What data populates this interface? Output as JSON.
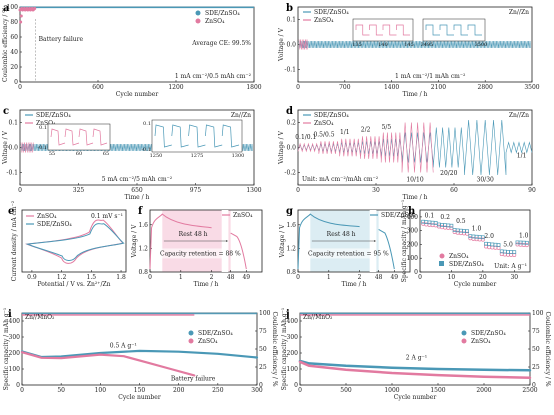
{
  "colors": {
    "sde": "#4a98b6",
    "zn": "#e27aa0",
    "zn_light": "#f3c4d6",
    "sde_light": "#c7e3ec",
    "rest_pink": "#f9dbe6",
    "rest_blue": "#dcedf3"
  },
  "watermark": "",
  "chart_data": [
    {
      "panel": "a",
      "type": "scatter",
      "xlabel": "Cycle number",
      "ylabel": "Coulombic efficiency / %",
      "xlim": [
        0,
        1800
      ],
      "ylim": [
        0,
        100
      ],
      "xticks": [
        0,
        600,
        1200,
        1800
      ],
      "yticks": [
        0,
        20,
        40,
        60,
        80,
        100
      ],
      "series": [
        {
          "name": "SDE/ZnSO₄",
          "color": "sde",
          "x": [
            0,
            1800
          ],
          "y": [
            99.5,
            99.5
          ]
        },
        {
          "name": "ZnSO₄",
          "color": "zn",
          "x": [
            0,
            120
          ],
          "y": [
            97,
            99
          ]
        }
      ],
      "annotations": [
        "Battery failure",
        "Average CE: 99.5%",
        "1 mA cm⁻²/0.5 mAh cm⁻²"
      ],
      "failure_x": 120
    },
    {
      "panel": "b",
      "type": "line",
      "xlabel": "Time / h",
      "ylabel": "Voltage / V",
      "xlim": [
        0,
        3500
      ],
      "ylim": [
        -0.15,
        0.15
      ],
      "xticks": [
        0,
        700,
        1400,
        2100,
        2800,
        3500
      ],
      "yticks": [
        -0.1,
        0.0,
        0.1
      ],
      "series": [
        {
          "name": "SDE/ZnSO₄",
          "color": "sde"
        },
        {
          "name": "ZnSO₄",
          "color": "zn"
        }
      ],
      "zn_end_x": 150,
      "inset1_ticks": [
        135,
        140,
        145
      ],
      "inset2_ticks": [
        3495,
        3500
      ],
      "annotations": [
        "Zn//Zn",
        "1 mA cm⁻²/1 mAh cm⁻²"
      ]
    },
    {
      "panel": "c",
      "type": "line",
      "xlabel": "Time / h",
      "ylabel": "Voltage / V",
      "xlim": [
        0,
        1300
      ],
      "ylim": [
        -0.15,
        0.15
      ],
      "xticks": [
        0,
        325,
        650,
        975,
        1300
      ],
      "yticks": [
        -0.1,
        0.0,
        0.1
      ],
      "series": [
        {
          "name": "SDE/ZnSO₄",
          "color": "sde"
        },
        {
          "name": "ZnSO₄",
          "color": "zn"
        }
      ],
      "zn_end_x": 80,
      "inset1_ticks": [
        55,
        60,
        65
      ],
      "inset1_y": [
        0.1,
        -0.1
      ],
      "inset2_ticks": [
        1250,
        1275,
        1300
      ],
      "inset2_y": [
        0.1,
        -0.1
      ],
      "annotations": [
        "Zn//Zn",
        "5 mA cm⁻²/5 mAh cm⁻²"
      ]
    },
    {
      "panel": "d",
      "type": "line",
      "xlabel": "Time / h",
      "ylabel": "Voltage / V",
      "xlim": [
        0,
        90
      ],
      "ylim": [
        -0.3,
        0.3
      ],
      "xticks": [
        0,
        30,
        60,
        90
      ],
      "yticks": [
        -0.2,
        0.0,
        0.2
      ],
      "series": [
        {
          "name": "SDE/ZnSO₄",
          "color": "sde"
        },
        {
          "name": "ZnSO₄",
          "color": "zn"
        }
      ],
      "rate_labels": [
        "0.1/0.1",
        "0.5/0.5",
        "1/1",
        "2/2",
        "5/5",
        "10/10",
        "20/20",
        "30/30",
        "1/1"
      ],
      "annotations": [
        "Zn//Zn",
        "Unit: mA cm⁻²/mAh cm⁻²"
      ]
    },
    {
      "panel": "e",
      "type": "line",
      "xlabel": "Potential / V vs. Zn²⁺/Zn",
      "ylabel": "Current density / mA cm⁻²",
      "xlim": [
        0.8,
        1.85
      ],
      "xticks": [
        0.9,
        1.2,
        1.5,
        1.8
      ],
      "series": [
        {
          "name": "ZnSO₄",
          "color": "zn"
        },
        {
          "name": "SDE/ZnSO₄",
          "color": "sde"
        }
      ],
      "annotations": [
        "0.1 mV s⁻¹"
      ]
    },
    {
      "panel": "f",
      "type": "line",
      "xlabel": "Time / h",
      "ylabel": "Voltage / V",
      "xlim": [
        0,
        50
      ],
      "ylim": [
        0.8,
        1.85
      ],
      "xticks": [
        0,
        1,
        2,
        48,
        49
      ],
      "yticks": [
        0.8,
        1.2,
        1.6
      ],
      "series": [
        {
          "name": "ZnSO₄",
          "color": "zn"
        }
      ],
      "annotations": [
        "Rest 48 h",
        "Capacity retention = 88 %"
      ]
    },
    {
      "panel": "g",
      "type": "line",
      "xlabel": "Time / h",
      "ylabel": "Voltage / V",
      "xlim": [
        0,
        50
      ],
      "ylim": [
        0.8,
        1.85
      ],
      "xticks": [
        0,
        1,
        2,
        48,
        49
      ],
      "yticks": [
        0.8,
        1.2,
        1.6
      ],
      "series": [
        {
          "name": "SDE/ZnSO₄",
          "color": "sde"
        }
      ],
      "annotations": [
        "Rest 48 h",
        "Capacity retention = 95 %"
      ]
    },
    {
      "panel": "h",
      "type": "scatter",
      "xlabel": "Cycle number",
      "ylabel": "Specific capacity / mAh g⁻¹",
      "xlim": [
        0,
        35
      ],
      "ylim": [
        0,
        450
      ],
      "xticks": [
        0,
        10,
        20,
        30
      ],
      "yticks": [
        0,
        100,
        200,
        300,
        400
      ],
      "series": [
        {
          "name": "ZnSO₄",
          "color": "zn",
          "x": [
            1,
            2,
            3,
            4,
            5,
            6,
            7,
            8,
            9,
            10,
            11,
            12,
            13,
            14,
            15,
            16,
            17,
            18,
            19,
            20,
            21,
            22,
            23,
            24,
            25,
            26,
            27,
            28,
            29,
            30,
            31,
            32,
            33,
            34
          ],
          "y": [
            350,
            345,
            342,
            340,
            338,
            330,
            325,
            322,
            320,
            318,
            290,
            285,
            282,
            280,
            278,
            245,
            240,
            238,
            236,
            235,
            185,
            180,
            178,
            176,
            175,
            130,
            127,
            125,
            124,
            123,
            200,
            198,
            196,
            195
          ]
        },
        {
          "name": "SDE/ZnSO₄",
          "color": "sde",
          "x": [
            1,
            2,
            3,
            4,
            5,
            6,
            7,
            8,
            9,
            10,
            11,
            12,
            13,
            14,
            15,
            16,
            17,
            18,
            19,
            20,
            21,
            22,
            23,
            24,
            25,
            26,
            27,
            28,
            29,
            30,
            31,
            32,
            33,
            34
          ],
          "y": [
            365,
            362,
            360,
            358,
            356,
            345,
            342,
            340,
            338,
            336,
            305,
            302,
            300,
            298,
            296,
            260,
            258,
            256,
            254,
            252,
            205,
            202,
            200,
            198,
            196,
            150,
            148,
            146,
            145,
            144,
            215,
            214,
            213,
            212
          ]
        }
      ],
      "rate_labels": [
        "0.1",
        "0.2",
        "0.5",
        "1.0",
        "2.0",
        "5.0",
        "1.0"
      ],
      "annotations": [
        "Unit: A g⁻¹"
      ]
    },
    {
      "panel": "i",
      "type": "line",
      "xlabel": "Cycle number",
      "ylabel": "Specific capacity / mAh g⁻¹",
      "y2label": "Coulombic efficiency / %",
      "xlim": [
        0,
        300
      ],
      "ylim": [
        0,
        450
      ],
      "y2lim": [
        0,
        100
      ],
      "xticks": [
        0,
        50,
        100,
        150,
        200,
        250,
        300
      ],
      "yticks": [
        0,
        100,
        200,
        300,
        400
      ],
      "y2ticks": [
        0,
        25,
        50,
        75,
        100
      ],
      "series": [
        {
          "name": "SDE/ZnSO₄",
          "color": "sde",
          "x": [
            0,
            25,
            50,
            100,
            150,
            200,
            250,
            300
          ],
          "y": [
            210,
            175,
            178,
            200,
            213,
            208,
            195,
            172
          ]
        },
        {
          "name": "ZnSO₄",
          "color": "zn",
          "x": [
            0,
            25,
            50,
            100,
            130,
            160,
            190,
            220
          ],
          "y": [
            205,
            170,
            168,
            190,
            180,
            140,
            100,
            60
          ]
        }
      ],
      "annotations": [
        "Zn//MnO₂",
        "0.5 A g⁻¹",
        "Battery failure"
      ]
    },
    {
      "panel": "j",
      "type": "line",
      "xlabel": "Cycle number",
      "ylabel": "Specific capacity / mAh g⁻¹",
      "y2label": "Coulombic efficiency / %",
      "xlim": [
        0,
        2500
      ],
      "ylim": [
        0,
        450
      ],
      "y2lim": [
        0,
        100
      ],
      "xticks": [
        0,
        500,
        1000,
        1500,
        2000,
        2500
      ],
      "yticks": [
        0,
        100,
        200,
        300,
        400
      ],
      "y2ticks": [
        0,
        25,
        50,
        75,
        100
      ],
      "series": [
        {
          "name": "SDE/ZnSO₄",
          "color": "sde",
          "x": [
            0,
            100,
            500,
            1000,
            1500,
            2000,
            2500
          ],
          "y": [
            150,
            135,
            120,
            108,
            100,
            95,
            92
          ]
        },
        {
          "name": "ZnSO₄",
          "color": "zn",
          "x": [
            0,
            100,
            500,
            1000,
            1500,
            2000,
            2500
          ],
          "y": [
            145,
            120,
            95,
            75,
            62,
            52,
            45
          ]
        }
      ],
      "annotations": [
        "Zn//MnO₂",
        "2 A g⁻¹"
      ]
    }
  ]
}
